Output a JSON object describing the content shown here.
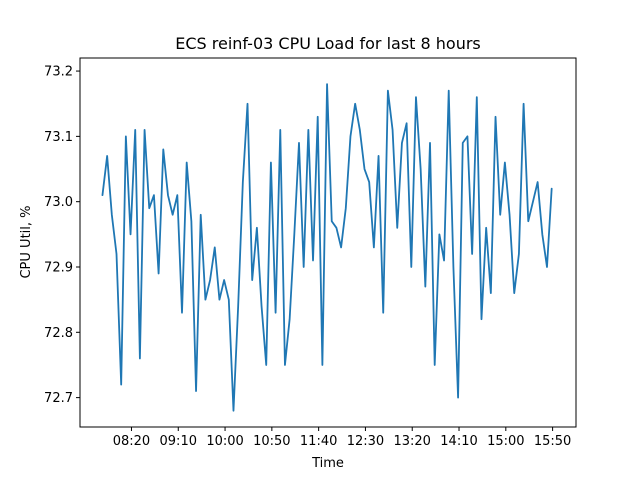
{
  "chart_data": {
    "type": "line",
    "title": "ECS reinf-03 CPU Load for last 8 hours",
    "xlabel": "Time",
    "ylabel": "CPU Util, %",
    "grid": false,
    "legend": "none",
    "color": "#1f77b4",
    "x_ticks": [
      "08:20",
      "09:10",
      "10:00",
      "10:50",
      "11:40",
      "12:30",
      "13:20",
      "14:10",
      "15:00",
      "15:50"
    ],
    "x_tick_minutes": [
      500,
      550,
      600,
      650,
      700,
      750,
      800,
      850,
      900,
      950
    ],
    "x_start_minute": 469,
    "x_step_minutes": 5,
    "xlim_minutes": [
      445,
      975
    ],
    "ylim": [
      72.655,
      73.22
    ],
    "y_ticks": [
      72.7,
      72.8,
      72.9,
      73.0,
      73.1,
      73.2
    ],
    "y_tick_labels": [
      "72.7",
      "72.8",
      "72.9",
      "73.0",
      "73.1",
      "73.2"
    ],
    "y_values": [
      73.01,
      73.07,
      72.98,
      72.92,
      72.72,
      73.1,
      72.95,
      73.11,
      72.76,
      73.11,
      72.99,
      73.01,
      72.89,
      73.08,
      73.01,
      72.98,
      73.01,
      72.83,
      73.06,
      72.97,
      72.71,
      72.98,
      72.85,
      72.88,
      72.93,
      72.85,
      72.88,
      72.85,
      72.68,
      72.84,
      73.03,
      73.15,
      72.88,
      72.96,
      72.84,
      72.75,
      73.06,
      72.83,
      73.11,
      72.75,
      72.82,
      72.95,
      73.09,
      72.9,
      73.11,
      72.91,
      73.13,
      72.75,
      73.18,
      72.97,
      72.96,
      72.93,
      72.99,
      73.1,
      73.15,
      73.11,
      73.05,
      73.03,
      72.93,
      73.07,
      72.83,
      73.17,
      73.11,
      72.96,
      73.09,
      73.12,
      72.9,
      73.16,
      73.05,
      72.87,
      73.09,
      72.75,
      72.95,
      72.91,
      73.17,
      72.9,
      72.7,
      73.09,
      73.1,
      72.92,
      73.16,
      72.82,
      72.96,
      72.86,
      73.13,
      72.98,
      73.06,
      72.98,
      72.86,
      72.92,
      73.15,
      72.97,
      73.0,
      73.03,
      72.95,
      72.9,
      73.02
    ]
  }
}
